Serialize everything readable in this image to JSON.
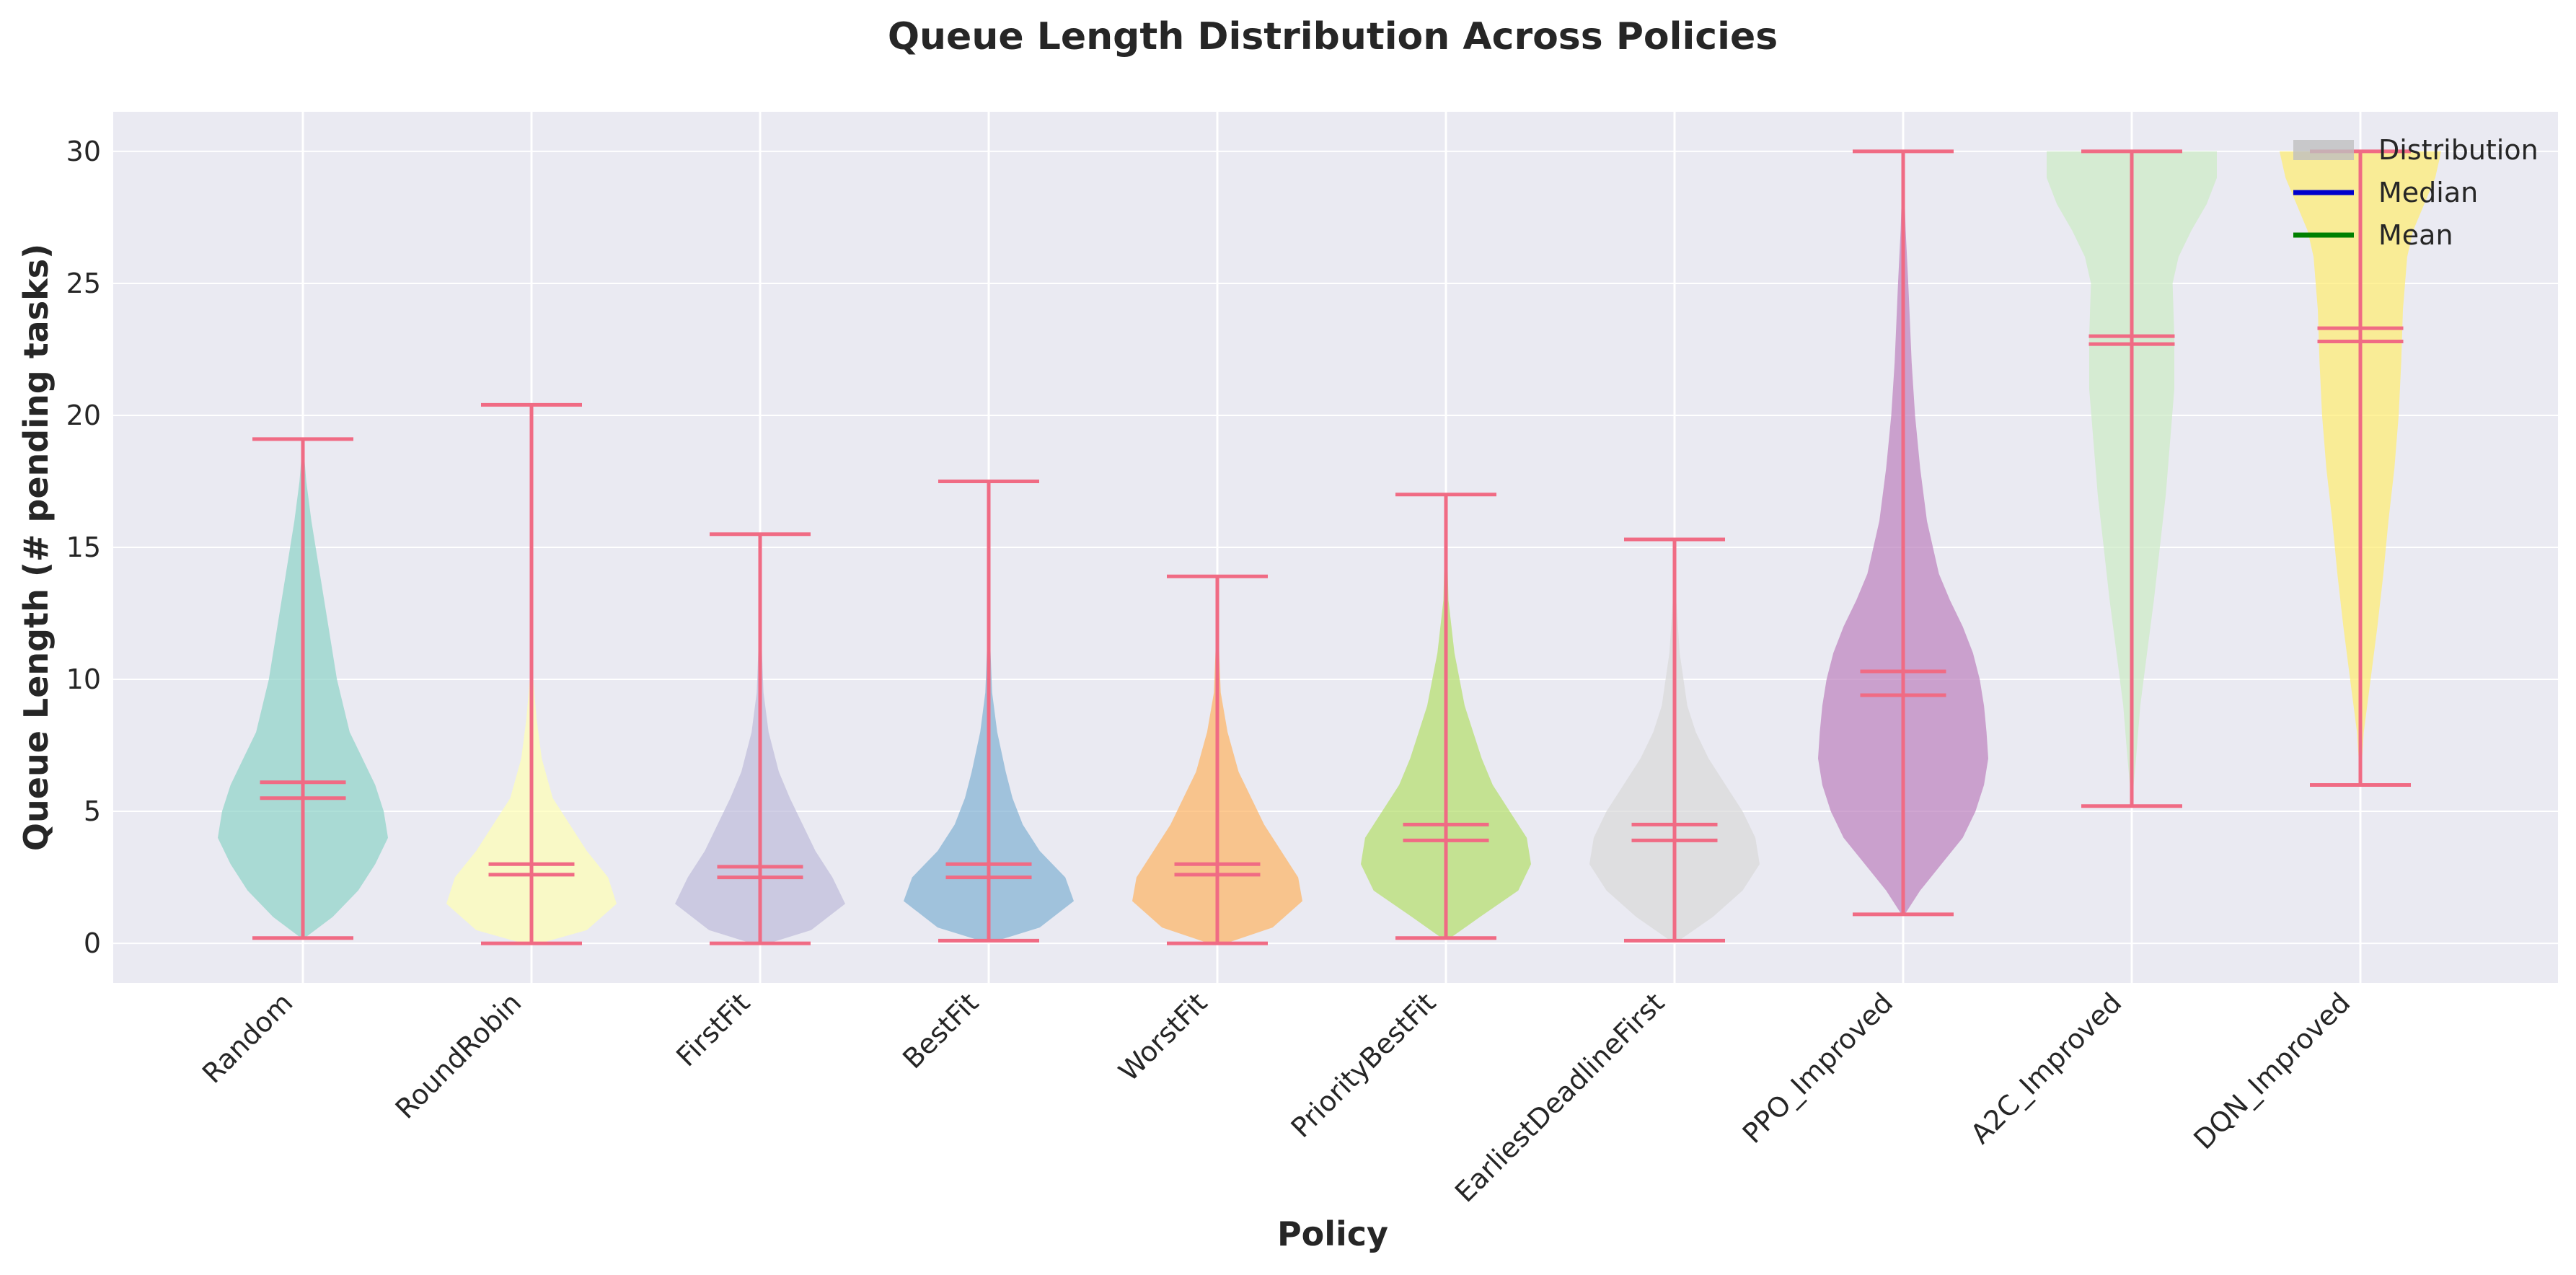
{
  "chart_data": {
    "type": "violin",
    "title": "Queue Length Distribution Across Policies",
    "xlabel": "Policy",
    "ylabel": "Queue Length (# pending tasks)",
    "ylim": [
      -1.5,
      31.5
    ],
    "yticks": [
      0,
      5,
      10,
      15,
      20,
      25,
      30
    ],
    "grid": true,
    "legend_position": "top-right",
    "legend": [
      {
        "label": "Distribution",
        "kind": "patch",
        "color": "#bfbfbf"
      },
      {
        "label": "Median",
        "kind": "line",
        "color": "#0000cc"
      },
      {
        "label": "Mean",
        "kind": "line",
        "color": "#008000"
      }
    ],
    "marker_color": "#f06b84",
    "categories": [
      "Random",
      "RoundRobin",
      "FirstFit",
      "BestFit",
      "WorstFit",
      "PriorityBestFit",
      "EarliestDeadlineFirst",
      "PPO_Improved",
      "A2C_Improved",
      "DQN_Improved"
    ],
    "series": [
      {
        "category": "Random",
        "color": "#8dd3c7",
        "min": 0.2,
        "max": 19.1,
        "median": 5.5,
        "mean": 6.1,
        "density": [
          [
            0.2,
            0.02
          ],
          [
            1,
            0.35
          ],
          [
            2,
            0.65
          ],
          [
            3,
            0.85
          ],
          [
            4,
            1.0
          ],
          [
            5,
            0.95
          ],
          [
            6,
            0.85
          ],
          [
            7,
            0.7
          ],
          [
            8,
            0.55
          ],
          [
            10,
            0.4
          ],
          [
            12,
            0.3
          ],
          [
            14,
            0.2
          ],
          [
            16,
            0.1
          ],
          [
            17.5,
            0.04
          ],
          [
            19.1,
            0.0
          ]
        ]
      },
      {
        "category": "RoundRobin",
        "color": "#ffffb3",
        "min": 0.0,
        "max": 20.4,
        "median": 2.6,
        "mean": 3.0,
        "density": [
          [
            0,
            0.1
          ],
          [
            0.5,
            0.65
          ],
          [
            1.5,
            1.0
          ],
          [
            2.5,
            0.9
          ],
          [
            3.5,
            0.65
          ],
          [
            4.5,
            0.45
          ],
          [
            5.5,
            0.25
          ],
          [
            7,
            0.12
          ],
          [
            8.5,
            0.06
          ],
          [
            10,
            0.02
          ],
          [
            13,
            0.01
          ],
          [
            20.4,
            0.0
          ]
        ]
      },
      {
        "category": "FirstFit",
        "color": "#bebada",
        "min": 0.0,
        "max": 15.5,
        "median": 2.5,
        "mean": 2.9,
        "density": [
          [
            0,
            0.1
          ],
          [
            0.5,
            0.6
          ],
          [
            1.5,
            1.0
          ],
          [
            2.5,
            0.85
          ],
          [
            3.5,
            0.65
          ],
          [
            4.5,
            0.5
          ],
          [
            5.5,
            0.35
          ],
          [
            6.5,
            0.22
          ],
          [
            8,
            0.1
          ],
          [
            9.5,
            0.04
          ],
          [
            12,
            0.01
          ],
          [
            15.5,
            0.0
          ]
        ]
      },
      {
        "category": "BestFit",
        "color": "#80b1d3",
        "min": 0.1,
        "max": 17.5,
        "median": 2.5,
        "mean": 3.0,
        "density": [
          [
            0.1,
            0.1
          ],
          [
            0.6,
            0.6
          ],
          [
            1.6,
            1.0
          ],
          [
            2.5,
            0.9
          ],
          [
            3.5,
            0.6
          ],
          [
            4.5,
            0.4
          ],
          [
            5.5,
            0.28
          ],
          [
            6.5,
            0.2
          ],
          [
            8,
            0.1
          ],
          [
            9.5,
            0.04
          ],
          [
            12,
            0.01
          ],
          [
            17.5,
            0.0
          ]
        ]
      },
      {
        "category": "WorstFit",
        "color": "#fdb462",
        "min": 0.0,
        "max": 13.9,
        "median": 2.6,
        "mean": 3.0,
        "density": [
          [
            0,
            0.1
          ],
          [
            0.6,
            0.65
          ],
          [
            1.6,
            1.0
          ],
          [
            2.5,
            0.95
          ],
          [
            3.5,
            0.75
          ],
          [
            4.5,
            0.55
          ],
          [
            5.5,
            0.4
          ],
          [
            6.5,
            0.25
          ],
          [
            8,
            0.12
          ],
          [
            9.5,
            0.04
          ],
          [
            12,
            0.01
          ],
          [
            13.9,
            0.0
          ]
        ]
      },
      {
        "category": "PriorityBestFit",
        "color": "#b3de69",
        "min": 0.2,
        "max": 17.0,
        "median": 3.9,
        "mean": 4.5,
        "density": [
          [
            0.2,
            0.05
          ],
          [
            1,
            0.4
          ],
          [
            2,
            0.85
          ],
          [
            3,
            1.0
          ],
          [
            4,
            0.95
          ],
          [
            5,
            0.75
          ],
          [
            6,
            0.55
          ],
          [
            7,
            0.42
          ],
          [
            8,
            0.32
          ],
          [
            9,
            0.22
          ],
          [
            11,
            0.1
          ],
          [
            13,
            0.03
          ],
          [
            17,
            0.0
          ]
        ]
      },
      {
        "category": "EarliestDeadlineFirst",
        "color": "#d9d9d9",
        "min": 0.1,
        "max": 15.3,
        "median": 3.9,
        "mean": 4.5,
        "density": [
          [
            0.1,
            0.05
          ],
          [
            1,
            0.45
          ],
          [
            2,
            0.8
          ],
          [
            3,
            1.0
          ],
          [
            4,
            0.95
          ],
          [
            5,
            0.8
          ],
          [
            6,
            0.6
          ],
          [
            7,
            0.4
          ],
          [
            8,
            0.25
          ],
          [
            9,
            0.15
          ],
          [
            11,
            0.06
          ],
          [
            13,
            0.02
          ],
          [
            15.3,
            0.0
          ]
        ]
      },
      {
        "category": "PPO_Improved",
        "color": "#bc80bd",
        "min": 1.1,
        "max": 30.0,
        "median": 9.4,
        "mean": 10.3,
        "density": [
          [
            1.1,
            0.02
          ],
          [
            2,
            0.2
          ],
          [
            3,
            0.45
          ],
          [
            4,
            0.7
          ],
          [
            5,
            0.85
          ],
          [
            6,
            0.95
          ],
          [
            7,
            1.0
          ],
          [
            8,
            0.98
          ],
          [
            9,
            0.95
          ],
          [
            10,
            0.9
          ],
          [
            11,
            0.82
          ],
          [
            12,
            0.7
          ],
          [
            13,
            0.55
          ],
          [
            14,
            0.42
          ],
          [
            16,
            0.28
          ],
          [
            18,
            0.2
          ],
          [
            20,
            0.14
          ],
          [
            22,
            0.1
          ],
          [
            25,
            0.06
          ],
          [
            27,
            0.03
          ],
          [
            30,
            0.0
          ]
        ]
      },
      {
        "category": "A2C_Improved",
        "color": "#ccebc5",
        "min": 5.2,
        "max": 30.0,
        "median": 22.7,
        "mean": 23.0,
        "density": [
          [
            5.2,
            0.0
          ],
          [
            7,
            0.05
          ],
          [
            9,
            0.1
          ],
          [
            11,
            0.18
          ],
          [
            13,
            0.26
          ],
          [
            15,
            0.33
          ],
          [
            17,
            0.4
          ],
          [
            19,
            0.45
          ],
          [
            21,
            0.5
          ],
          [
            23,
            0.5
          ],
          [
            25,
            0.48
          ],
          [
            26,
            0.55
          ],
          [
            27,
            0.7
          ],
          [
            28,
            0.88
          ],
          [
            29,
            1.0
          ],
          [
            30,
            1.0
          ]
        ]
      },
      {
        "category": "DQN_Improved",
        "color": "#ffed6f",
        "min": 6.0,
        "max": 30.0,
        "median": 22.8,
        "mean": 23.3,
        "density": [
          [
            6.0,
            0.0
          ],
          [
            8,
            0.04
          ],
          [
            10,
            0.12
          ],
          [
            12,
            0.2
          ],
          [
            14,
            0.27
          ],
          [
            16,
            0.33
          ],
          [
            18,
            0.4
          ],
          [
            20,
            0.45
          ],
          [
            22,
            0.48
          ],
          [
            24,
            0.5
          ],
          [
            26,
            0.55
          ],
          [
            27,
            0.62
          ],
          [
            28,
            0.75
          ],
          [
            29,
            0.88
          ],
          [
            30,
            0.95
          ]
        ]
      }
    ]
  }
}
